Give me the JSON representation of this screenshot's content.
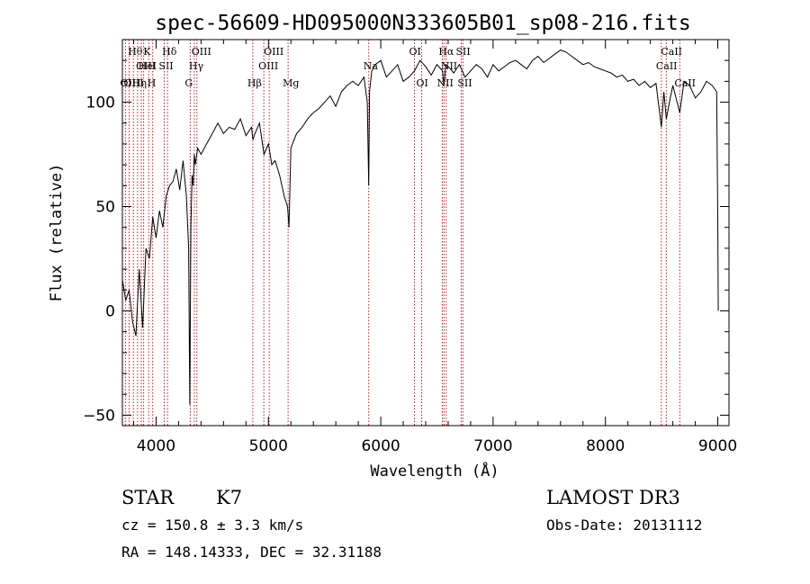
{
  "chart_data": {
    "type": "line",
    "title": "spec-56609-HD095000N333605B01_sp08-216.fits",
    "xlabel": "Wavelength (Å)",
    "ylabel": "Flux (relative)",
    "xlim": [
      3700,
      9100
    ],
    "ylim": [
      -55,
      130
    ],
    "xticks": [
      4000,
      5000,
      6000,
      7000,
      8000,
      9000
    ],
    "yticks": [
      -50,
      0,
      50,
      100
    ],
    "grid": false,
    "line_color": "#000000",
    "marker_color": "#b22222",
    "series": [
      {
        "x": [
          3700,
          3730,
          3760,
          3790,
          3820,
          3850,
          3880,
          3910,
          3940,
          3970,
          4000,
          4030,
          4060,
          4090,
          4120,
          4150,
          4180,
          4210,
          4240,
          4270,
          4290,
          4300,
          4310,
          4320,
          4330,
          4340,
          4350,
          4370,
          4400,
          4450,
          4500,
          4550,
          4600,
          4650,
          4700,
          4750,
          4800,
          4850,
          4862,
          4880,
          4920,
          4960,
          5000,
          5030,
          5060,
          5100,
          5140,
          5170,
          5183,
          5200,
          5250,
          5300,
          5350,
          5400,
          5450,
          5500,
          5550,
          5600,
          5650,
          5700,
          5750,
          5800,
          5850,
          5880,
          5893,
          5900,
          5920,
          5950,
          6000,
          6050,
          6100,
          6150,
          6200,
          6250,
          6300,
          6350,
          6400,
          6450,
          6500,
          6550,
          6563,
          6580,
          6620,
          6650,
          6700,
          6750,
          6800,
          6850,
          6900,
          6950,
          7000,
          7050,
          7100,
          7150,
          7200,
          7250,
          7300,
          7350,
          7400,
          7450,
          7500,
          7550,
          7600,
          7650,
          7700,
          7750,
          7800,
          7850,
          7900,
          7950,
          8000,
          8050,
          8100,
          8150,
          8200,
          8250,
          8300,
          8350,
          8400,
          8450,
          8498,
          8520,
          8542,
          8570,
          8600,
          8662,
          8700,
          8750,
          8800,
          8850,
          8900,
          8950,
          8990,
          9000,
          9005
        ],
        "y": [
          15,
          5,
          10,
          -5,
          -12,
          20,
          -8,
          30,
          25,
          45,
          35,
          48,
          40,
          55,
          60,
          62,
          68,
          58,
          72,
          55,
          30,
          -45,
          40,
          65,
          60,
          75,
          70,
          78,
          75,
          80,
          85,
          90,
          85,
          88,
          87,
          92,
          84,
          88,
          82,
          85,
          90,
          75,
          80,
          70,
          72,
          65,
          55,
          50,
          40,
          78,
          85,
          88,
          92,
          95,
          97,
          100,
          103,
          98,
          105,
          108,
          110,
          108,
          112,
          100,
          60,
          105,
          115,
          118,
          120,
          112,
          115,
          118,
          110,
          112,
          115,
          120,
          117,
          113,
          118,
          115,
          108,
          118,
          116,
          114,
          118,
          112,
          115,
          118,
          116,
          112,
          118,
          115,
          117,
          119,
          120,
          118,
          116,
          120,
          122,
          119,
          121,
          123,
          125,
          124,
          122,
          120,
          118,
          119,
          117,
          116,
          115,
          114,
          112,
          113,
          110,
          111,
          108,
          110,
          107,
          109,
          88,
          105,
          92,
          100,
          108,
          95,
          110,
          108,
          102,
          105,
          110,
          108,
          105,
          45,
          0
        ]
      }
    ],
    "lines": [
      {
        "x": 3727,
        "label": "OII",
        "row": 3
      },
      {
        "x": 3760,
        "label": "OIII",
        "row": 3
      },
      {
        "x": 3798,
        "label": "Hθ",
        "row": 1
      },
      {
        "x": 3835,
        "label": "Hη",
        "row": 3
      },
      {
        "x": 3869,
        "label": "OIII",
        "row": 2
      },
      {
        "x": 3889,
        "label": "HeI",
        "row": 2
      },
      {
        "x": 3934,
        "label": "K",
        "row": 1
      },
      {
        "x": 3970,
        "label": "H",
        "row": 3
      },
      {
        "x": 4072,
        "label": "SII",
        "row": 2
      },
      {
        "x": 4102,
        "label": "Hδ",
        "row": 1
      },
      {
        "x": 4304,
        "label": "G",
        "row": 3
      },
      {
        "x": 4340,
        "label": "Hγ",
        "row": 2
      },
      {
        "x": 4363,
        "label": "OIII",
        "row": 1
      },
      {
        "x": 4861,
        "label": "Hβ",
        "row": 3
      },
      {
        "x": 4959,
        "label": "OIII",
        "row": 2
      },
      {
        "x": 5007,
        "label": "OIII",
        "row": 1
      },
      {
        "x": 5175,
        "label": "Mg",
        "row": 3
      },
      {
        "x": 5893,
        "label": "Na",
        "row": 2
      },
      {
        "x": 6300,
        "label": "OI",
        "row": 1
      },
      {
        "x": 6364,
        "label": "OI",
        "row": 3
      },
      {
        "x": 6548,
        "label": "NII",
        "row": 3
      },
      {
        "x": 6563,
        "label": "Hα",
        "row": 1
      },
      {
        "x": 6583,
        "label": "NII",
        "row": 2
      },
      {
        "x": 6716,
        "label": "SII",
        "row": 1
      },
      {
        "x": 6731,
        "label": "SII",
        "row": 3
      },
      {
        "x": 8498,
        "label": "CaII",
        "row": 2
      },
      {
        "x": 8542,
        "label": "CaII",
        "row": 1
      },
      {
        "x": 8662,
        "label": "CaII",
        "row": 3
      }
    ]
  },
  "info": {
    "class_label": "STAR",
    "subclass": "K7",
    "survey": "LAMOST DR3",
    "cz": "cz = 150.8 ± 3.3 km/s",
    "obs_date": "Obs-Date: 20131112",
    "coords": "RA = 148.14333, DEC =  32.31188"
  }
}
